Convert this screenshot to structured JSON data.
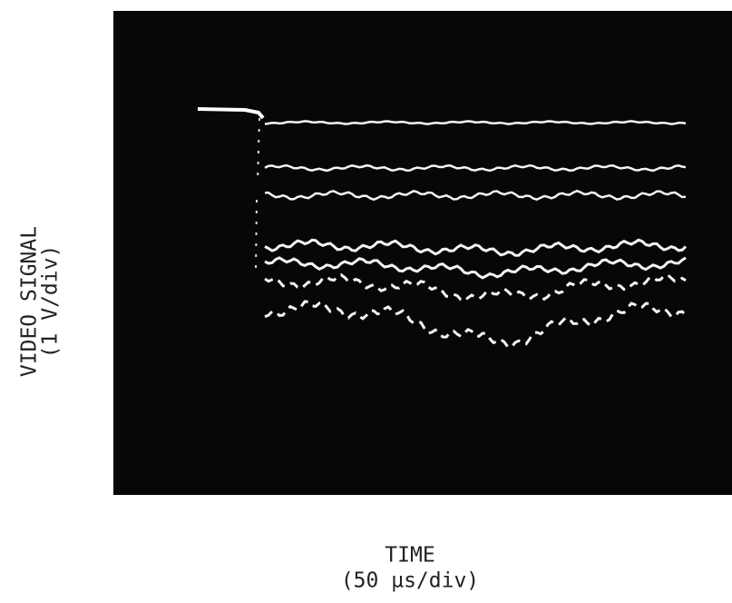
{
  "y_axis": {
    "label": "VIDEO SIGNAL",
    "unit": "(1 V/div)"
  },
  "x_axis": {
    "label": "TIME",
    "unit": "(50 µs/div)"
  }
}
